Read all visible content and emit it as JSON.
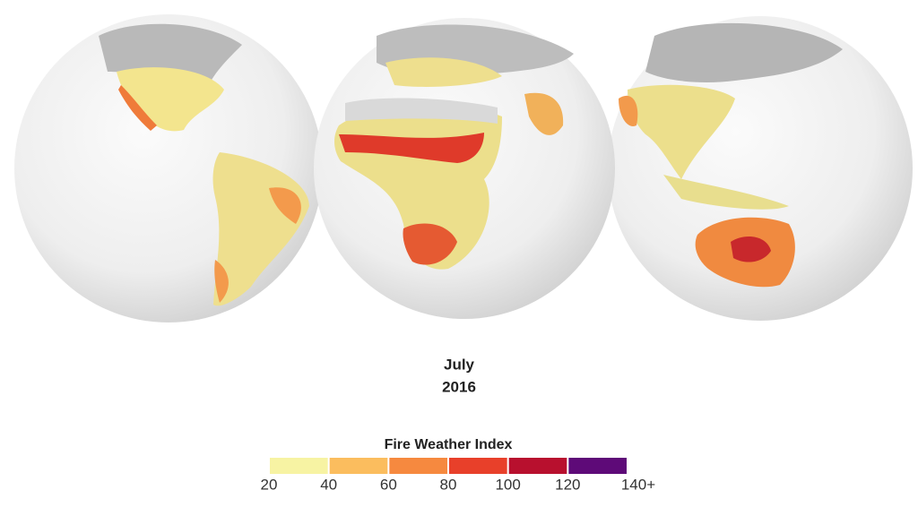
{
  "caption": {
    "month": "July",
    "year": "2016"
  },
  "legend": {
    "title": "Fire Weather Index",
    "ticks": [
      20,
      40,
      60,
      80,
      100,
      120,
      {
        "value": 140,
        "label": "140+"
      }
    ],
    "colors": [
      "#f7f3a3",
      "#fbbd5e",
      "#f6893f",
      "#e8402a",
      "#b8102e",
      "#5e0a78"
    ]
  }
}
